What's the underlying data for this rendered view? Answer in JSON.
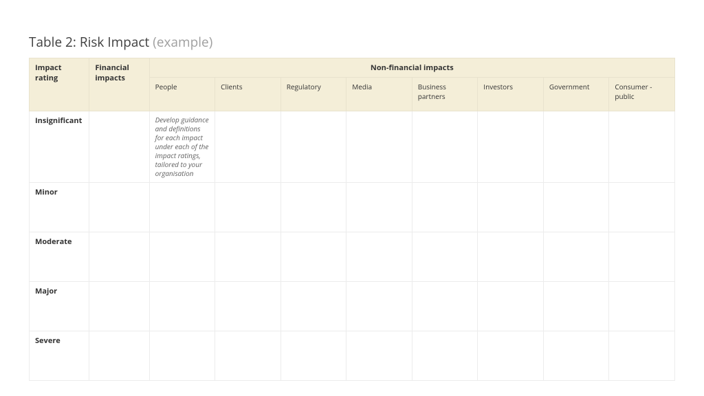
{
  "title_prefix": "Table 2: Risk Impact ",
  "title_suffix": "(example)",
  "colors": {
    "header_bg": "#f4eed8",
    "header_border": "#e8e2cd",
    "body_border": "#ececec",
    "text": "#333333",
    "muted": "#a0a0a0"
  },
  "columns": {
    "impact_rating": "Impact rating",
    "financial": "Financial impacts",
    "nonfinancial_group": "Non-financial impacts",
    "nonfinancial": [
      "People",
      "Clients",
      "Regulatory",
      "Media",
      "Business partners",
      "Investors",
      "Government",
      "Consumer - public"
    ]
  },
  "col_widths_pct": [
    9.3,
    9.3,
    10.175,
    10.175,
    10.175,
    10.175,
    10.175,
    10.175,
    10.175,
    10.175
  ],
  "rows": [
    {
      "label": "Insignificant",
      "cells": [
        "",
        "Develop guidance and definitions for each impact under each of the impact ratings, tailored to your organisation",
        "",
        "",
        "",
        "",
        "",
        "",
        ""
      ]
    },
    {
      "label": "Minor",
      "cells": [
        "",
        "",
        "",
        "",
        "",
        "",
        "",
        "",
        ""
      ]
    },
    {
      "label": "Moderate",
      "cells": [
        "",
        "",
        "",
        "",
        "",
        "",
        "",
        "",
        ""
      ]
    },
    {
      "label": "Major",
      "cells": [
        "",
        "",
        "",
        "",
        "",
        "",
        "",
        "",
        ""
      ]
    },
    {
      "label": "Severe",
      "cells": [
        "",
        "",
        "",
        "",
        "",
        "",
        "",
        "",
        ""
      ]
    }
  ]
}
